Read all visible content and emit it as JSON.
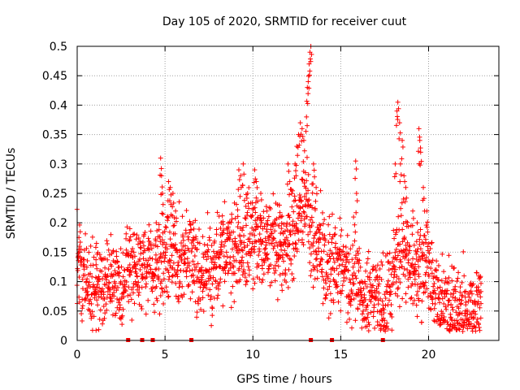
{
  "chart_data": {
    "type": "scatter",
    "title": "Day 105 of 2020, SRMTID for receiver cuut",
    "xlabel": "GPS time / hours",
    "ylabel": "SRMTID / TECUs",
    "xlim": [
      0,
      24
    ],
    "ylim": [
      0,
      0.5
    ],
    "x_ticks": [
      0,
      5,
      10,
      15,
      20
    ],
    "x_tick_labels": [
      "0",
      "5",
      "10",
      "15",
      "20"
    ],
    "y_ticks": [
      0,
      0.05,
      0.1,
      0.15,
      0.2,
      0.25,
      0.3,
      0.35,
      0.4,
      0.45,
      0.5
    ],
    "y_tick_labels": [
      "0",
      "0.05",
      "0.1",
      "0.15",
      "0.2",
      "0.25",
      "0.3",
      "0.35",
      "0.4",
      "0.45",
      "0.5"
    ],
    "grid": true,
    "marker": "+",
    "color": "#ff0000",
    "trend": [
      {
        "x": 0.0,
        "y": 0.12
      },
      {
        "x": 0.5,
        "y": 0.11
      },
      {
        "x": 1.0,
        "y": 0.09
      },
      {
        "x": 1.5,
        "y": 0.1
      },
      {
        "x": 2.0,
        "y": 0.11
      },
      {
        "x": 2.5,
        "y": 0.1
      },
      {
        "x": 3.0,
        "y": 0.13
      },
      {
        "x": 3.5,
        "y": 0.11
      },
      {
        "x": 4.0,
        "y": 0.13
      },
      {
        "x": 4.5,
        "y": 0.12
      },
      {
        "x": 5.0,
        "y": 0.15
      },
      {
        "x": 5.5,
        "y": 0.16
      },
      {
        "x": 6.0,
        "y": 0.14
      },
      {
        "x": 6.5,
        "y": 0.15
      },
      {
        "x": 7.0,
        "y": 0.11
      },
      {
        "x": 7.5,
        "y": 0.12
      },
      {
        "x": 8.0,
        "y": 0.14
      },
      {
        "x": 8.5,
        "y": 0.16
      },
      {
        "x": 9.0,
        "y": 0.15
      },
      {
        "x": 9.5,
        "y": 0.17
      },
      {
        "x": 10.0,
        "y": 0.17
      },
      {
        "x": 10.5,
        "y": 0.16
      },
      {
        "x": 11.0,
        "y": 0.17
      },
      {
        "x": 11.5,
        "y": 0.15
      },
      {
        "x": 12.0,
        "y": 0.16
      },
      {
        "x": 12.5,
        "y": 0.2
      },
      {
        "x": 13.0,
        "y": 0.24
      },
      {
        "x": 13.5,
        "y": 0.17
      },
      {
        "x": 14.0,
        "y": 0.15
      },
      {
        "x": 14.5,
        "y": 0.12
      },
      {
        "x": 15.0,
        "y": 0.13
      },
      {
        "x": 15.5,
        "y": 0.11
      },
      {
        "x": 16.0,
        "y": 0.1
      },
      {
        "x": 16.5,
        "y": 0.07
      },
      {
        "x": 17.0,
        "y": 0.07
      },
      {
        "x": 17.5,
        "y": 0.06
      },
      {
        "x": 18.0,
        "y": 0.12
      },
      {
        "x": 18.5,
        "y": 0.15
      },
      {
        "x": 19.0,
        "y": 0.12
      },
      {
        "x": 19.5,
        "y": 0.12
      },
      {
        "x": 20.0,
        "y": 0.13
      },
      {
        "x": 20.5,
        "y": 0.07
      },
      {
        "x": 21.0,
        "y": 0.06
      },
      {
        "x": 21.5,
        "y": 0.05
      },
      {
        "x": 22.0,
        "y": 0.05
      },
      {
        "x": 22.5,
        "y": 0.05
      },
      {
        "x": 23.0,
        "y": 0.07
      }
    ],
    "peaks": [
      {
        "x": 0.1,
        "y": 0.175
      },
      {
        "x": 1.1,
        "y": 0.165
      },
      {
        "x": 3.0,
        "y": 0.19
      },
      {
        "x": 4.5,
        "y": 0.2
      },
      {
        "x": 4.75,
        "y": 0.31
      },
      {
        "x": 4.8,
        "y": 0.28
      },
      {
        "x": 4.85,
        "y": 0.25
      },
      {
        "x": 5.2,
        "y": 0.27
      },
      {
        "x": 5.3,
        "y": 0.26
      },
      {
        "x": 5.45,
        "y": 0.25
      },
      {
        "x": 5.6,
        "y": 0.22
      },
      {
        "x": 6.6,
        "y": 0.2
      },
      {
        "x": 8.2,
        "y": 0.2
      },
      {
        "x": 9.2,
        "y": 0.29
      },
      {
        "x": 9.3,
        "y": 0.28
      },
      {
        "x": 9.45,
        "y": 0.3
      },
      {
        "x": 9.7,
        "y": 0.25
      },
      {
        "x": 10.1,
        "y": 0.29
      },
      {
        "x": 10.2,
        "y": 0.27
      },
      {
        "x": 10.45,
        "y": 0.25
      },
      {
        "x": 10.8,
        "y": 0.22
      },
      {
        "x": 11.5,
        "y": 0.23
      },
      {
        "x": 11.6,
        "y": 0.21
      },
      {
        "x": 12.0,
        "y": 0.3
      },
      {
        "x": 12.1,
        "y": 0.27
      },
      {
        "x": 12.4,
        "y": 0.3
      },
      {
        "x": 12.5,
        "y": 0.33
      },
      {
        "x": 12.6,
        "y": 0.35
      },
      {
        "x": 12.7,
        "y": 0.37
      },
      {
        "x": 12.8,
        "y": 0.36
      },
      {
        "x": 12.9,
        "y": 0.34
      },
      {
        "x": 13.05,
        "y": 0.38
      },
      {
        "x": 13.1,
        "y": 0.43
      },
      {
        "x": 13.15,
        "y": 0.44
      },
      {
        "x": 13.2,
        "y": 0.47
      },
      {
        "x": 13.25,
        "y": 0.49
      },
      {
        "x": 13.3,
        "y": 0.5
      },
      {
        "x": 13.45,
        "y": 0.3
      },
      {
        "x": 13.6,
        "y": 0.26
      },
      {
        "x": 15.85,
        "y": 0.305
      },
      {
        "x": 15.9,
        "y": 0.25
      },
      {
        "x": 18.1,
        "y": 0.3
      },
      {
        "x": 18.2,
        "y": 0.39
      },
      {
        "x": 18.25,
        "y": 0.405
      },
      {
        "x": 18.35,
        "y": 0.37
      },
      {
        "x": 18.4,
        "y": 0.3
      },
      {
        "x": 18.5,
        "y": 0.34
      },
      {
        "x": 18.6,
        "y": 0.28
      },
      {
        "x": 18.7,
        "y": 0.26
      },
      {
        "x": 19.1,
        "y": 0.22
      },
      {
        "x": 19.35,
        "y": 0.2
      },
      {
        "x": 19.45,
        "y": 0.36
      },
      {
        "x": 19.5,
        "y": 0.34
      },
      {
        "x": 19.55,
        "y": 0.32
      },
      {
        "x": 19.7,
        "y": 0.26
      },
      {
        "x": 19.9,
        "y": 0.22
      }
    ],
    "zero_points": [
      2.9,
      3.7,
      4.3,
      6.5,
      13.3,
      14.5,
      17.4
    ]
  }
}
